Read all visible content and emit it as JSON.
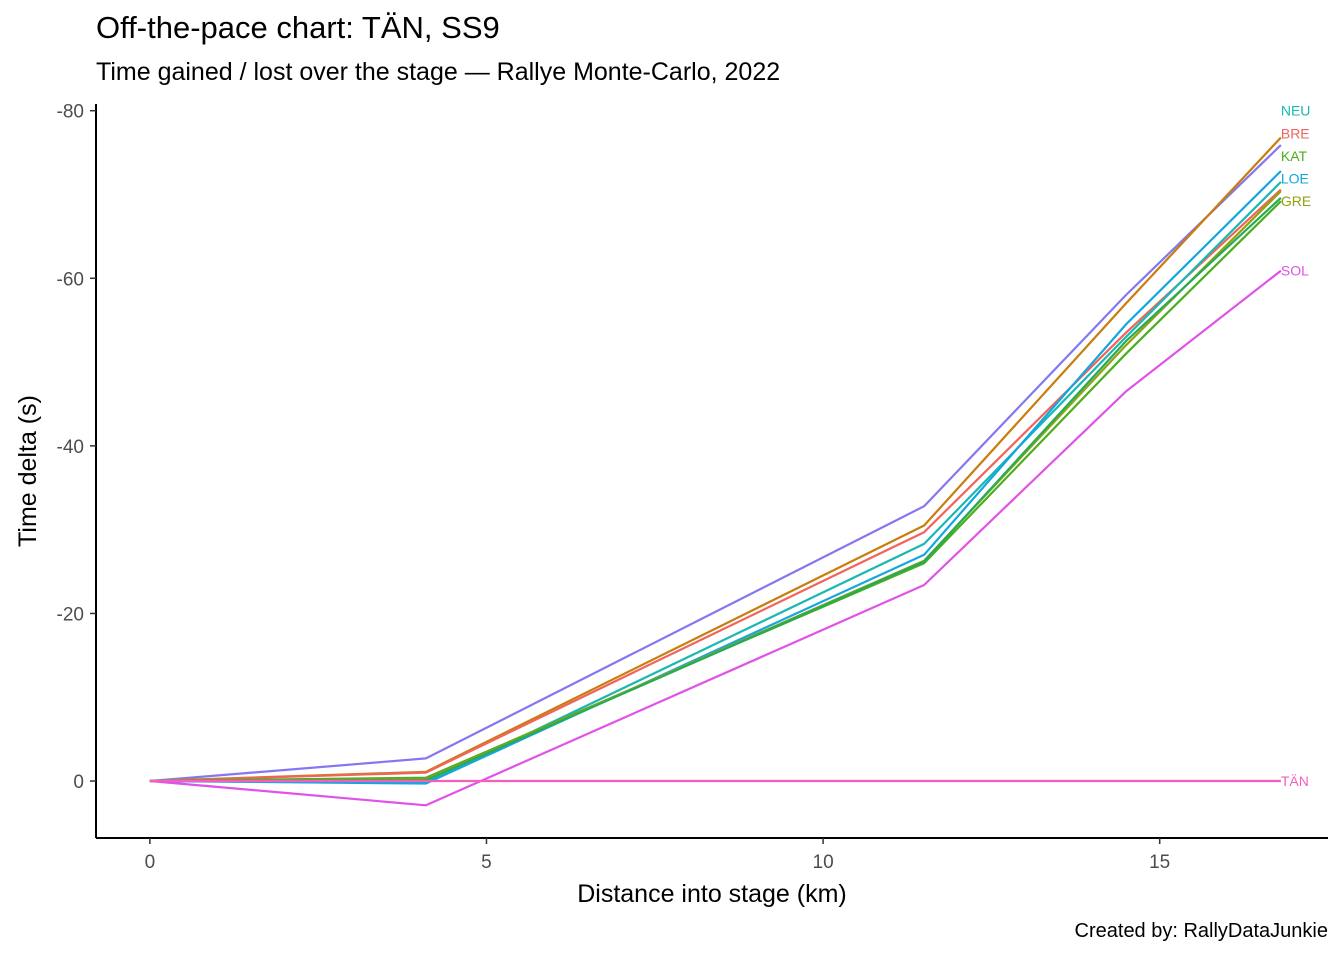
{
  "title": "Off-the-pace chart: TÄN, SS9",
  "subtitle": "Time gained / lost over the stage — Rallye Monte-Carlo, 2022",
  "caption": "Created by: RallyDataJunkie",
  "chart_data": {
    "type": "line",
    "xlabel": "Distance into stage (km)",
    "ylabel": "Time delta (s)",
    "xlim": [
      -0.8,
      17.5
    ],
    "ylim": [
      6.8,
      -80.8
    ],
    "y_reversed": true,
    "x_ticks": [
      0,
      5,
      10,
      15
    ],
    "y_ticks": [
      -80,
      -60,
      -40,
      -20,
      0
    ],
    "grid": false,
    "legend": "direct labels at line ends",
    "x": [
      0,
      4.1,
      11.5,
      14.5,
      16.8
    ],
    "series": [
      {
        "color": "#8478f0",
        "values": [
          0,
          -2.7,
          -32.8,
          -58.0,
          -75.9
        ]
      },
      {
        "color": "#c97d0d",
        "values": [
          0,
          -1.1,
          -30.5,
          -57.0,
          -76.8
        ]
      },
      {
        "name": "BRE",
        "label_y": -77.3,
        "color": "#f0645c",
        "values": [
          0,
          -1.0,
          -29.7,
          -53.5,
          -70.6
        ]
      },
      {
        "name": "NEU",
        "label_y": -80.0,
        "color": "#1bb8b2",
        "values": [
          0,
          0.2,
          -28.3,
          -53.0,
          -71.5
        ]
      },
      {
        "name": "LOE",
        "label_y": -71.9,
        "color": "#14a6e0",
        "values": [
          0,
          0.3,
          -27.0,
          -54.5,
          -72.8
        ]
      },
      {
        "name": "KAT",
        "label_y": -74.6,
        "color": "#4bae1e",
        "values": [
          0,
          -0.4,
          -26.0,
          -51.0,
          -69.2
        ]
      },
      {
        "name": "GRE",
        "label_y": -69.2,
        "color": "#93a30a",
        "values": [
          0,
          -0.2,
          -26.3,
          -52.0,
          -70.4
        ]
      },
      {
        "color": "#26ab5a",
        "values": [
          0,
          -0.1,
          -26.2,
          -52.5,
          -69.6
        ]
      },
      {
        "name": "SOL",
        "label_y": -60.9,
        "color": "#e052e8",
        "values": [
          0,
          2.9,
          -23.4,
          -46.5,
          -60.9
        ]
      },
      {
        "name": "TÄN",
        "label_y": 0,
        "color": "#f55ec0",
        "values": [
          0,
          0,
          0,
          0,
          0
        ]
      }
    ]
  }
}
